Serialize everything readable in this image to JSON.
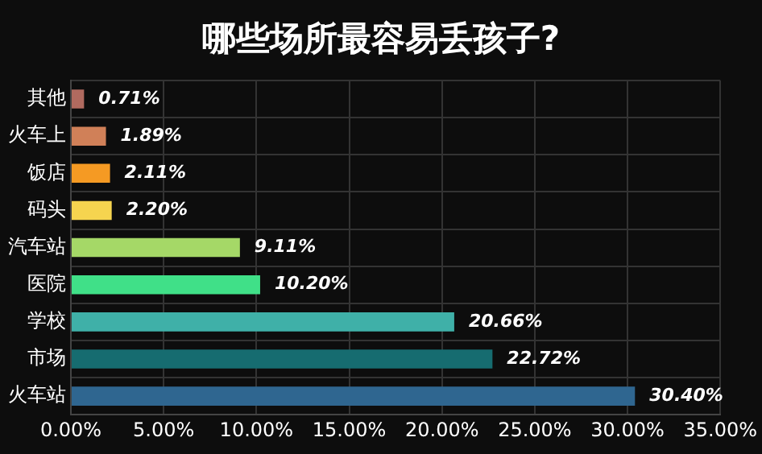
{
  "chart_data": {
    "type": "bar",
    "orientation": "horizontal",
    "title": "哪些场所最容易丢孩子?",
    "categories": [
      "其他",
      "火车上",
      "饭店",
      "码头",
      "汽车站",
      "医院",
      "学校",
      "市场",
      "火车站"
    ],
    "values": [
      0.71,
      1.89,
      2.11,
      2.2,
      9.11,
      10.2,
      20.66,
      22.72,
      30.4
    ],
    "colors": [
      "#b06a5f",
      "#d08058",
      "#f59a23",
      "#f6d44f",
      "#a5d867",
      "#40e088",
      "#3fb0a8",
      "#166c70",
      "#2f6690"
    ],
    "value_labels": [
      "0.71%",
      "1.89%",
      "2.11%",
      "2.20%",
      "9.11%",
      "10.20%",
      "20.66%",
      "22.72%",
      "30.40%"
    ],
    "xlim": [
      0,
      35
    ],
    "xticks": [
      {
        "value": 0,
        "label": "0.00%"
      },
      {
        "value": 5,
        "label": "5.00%"
      },
      {
        "value": 10,
        "label": "10.00%"
      },
      {
        "value": 15,
        "label": "15.00%"
      },
      {
        "value": 20,
        "label": "20.00%"
      },
      {
        "value": 25,
        "label": "25.00%"
      },
      {
        "value": 30,
        "label": "30.00%"
      },
      {
        "value": 35,
        "label": "35.00%"
      }
    ],
    "grid": true
  }
}
